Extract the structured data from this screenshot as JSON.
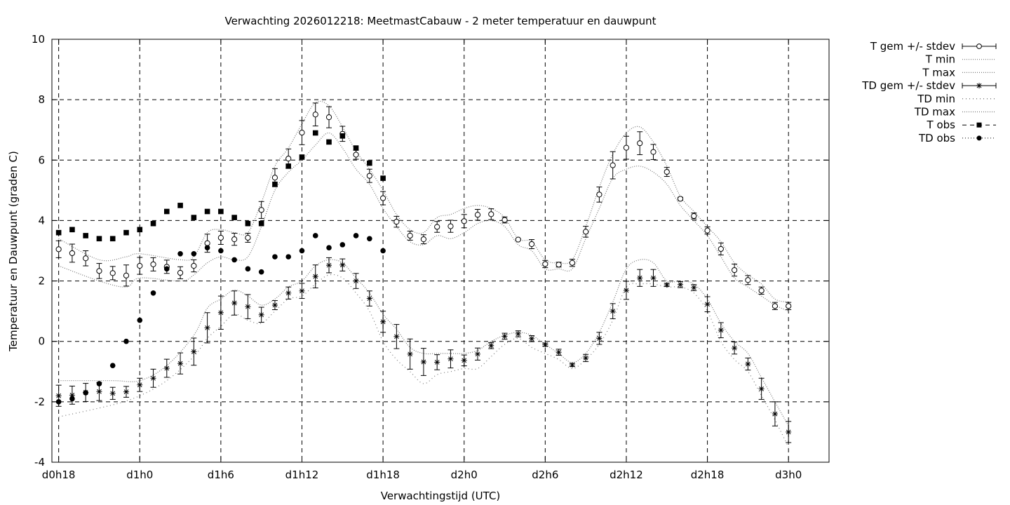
{
  "chart_data": {
    "type": "line",
    "title": "Verwachting 2026012218: MeetmastCabauw - 2 meter temperatuur en dauwpunt",
    "xlabel": "Verwachtingstijd (UTC)",
    "ylabel": "Temperatuur en Dauwpunt (graden C)",
    "x_unit": "hours since d0h18",
    "xlim": [
      -0.5,
      57
    ],
    "ylim": [
      -4,
      10
    ],
    "yticks": [
      -4,
      -2,
      0,
      2,
      4,
      6,
      8,
      10
    ],
    "ytick_labels": [
      "-4",
      "-2",
      "0",
      "2",
      "4",
      "6",
      "8",
      "10"
    ],
    "xticks": [
      0,
      6,
      12,
      18,
      24,
      30,
      36,
      42,
      48,
      54
    ],
    "xtick_labels": [
      "d0h18",
      "d1h0",
      "d1h6",
      "d1h12",
      "d1h18",
      "d2h0",
      "d2h6",
      "d2h12",
      "d2h18",
      "d3h0"
    ],
    "grid": true,
    "legend_position": "outside-top-right",
    "legend": [
      {
        "label": "T gem +/- stdev",
        "style": "errorbar-open-circle"
      },
      {
        "label": "T min",
        "style": "dotted"
      },
      {
        "label": "T max",
        "style": "dotted"
      },
      {
        "label": "TD gem +/- stdev",
        "style": "errorbar-star"
      },
      {
        "label": "TD min",
        "style": "dotted-sparse"
      },
      {
        "label": "TD max",
        "style": "dotted"
      },
      {
        "label": "T obs",
        "style": "dashed-filled-square"
      },
      {
        "label": "TD obs",
        "style": "dotted-filled-circle"
      }
    ],
    "series": [
      {
        "name": "T gem +/- stdev",
        "x": [
          0,
          1,
          2,
          3,
          4,
          5,
          6,
          7,
          8,
          9,
          10,
          11,
          12,
          13,
          14,
          15,
          16,
          17,
          18,
          19,
          20,
          21,
          22,
          23,
          24,
          25,
          26,
          27,
          28,
          29,
          30,
          31,
          32,
          33,
          34,
          35,
          36,
          37,
          38,
          39,
          40,
          41,
          42,
          43,
          44,
          45,
          46,
          47,
          48,
          49,
          50,
          51,
          52,
          53,
          54
        ],
        "y": [
          3.05,
          2.92,
          2.75,
          2.33,
          2.26,
          2.18,
          2.5,
          2.55,
          2.47,
          2.27,
          2.5,
          3.25,
          3.43,
          3.38,
          3.43,
          4.35,
          5.42,
          6.05,
          6.91,
          7.51,
          7.42,
          6.87,
          6.18,
          5.48,
          4.74,
          3.96,
          3.5,
          3.38,
          3.79,
          3.81,
          3.98,
          4.19,
          4.21,
          4.02,
          3.37,
          3.22,
          2.56,
          2.54,
          2.6,
          3.63,
          4.86,
          5.83,
          6.41,
          6.56,
          6.27,
          5.61,
          4.72,
          4.15,
          3.67,
          3.06,
          2.36,
          2.03,
          1.68,
          1.17,
          1.17
        ],
        "stdev": [
          0.28,
          0.3,
          0.25,
          0.25,
          0.22,
          0.35,
          0.28,
          0.22,
          0.22,
          0.2,
          0.2,
          0.3,
          0.22,
          0.2,
          0.15,
          0.28,
          0.3,
          0.32,
          0.4,
          0.38,
          0.35,
          0.25,
          0.15,
          0.22,
          0.22,
          0.18,
          0.15,
          0.15,
          0.18,
          0.2,
          0.22,
          0.18,
          0.18,
          0.1,
          0.02,
          0.15,
          0.12,
          0.08,
          0.12,
          0.18,
          0.25,
          0.45,
          0.38,
          0.38,
          0.25,
          0.15,
          0.05,
          0.1,
          0.12,
          0.2,
          0.2,
          0.15,
          0.12,
          0.12,
          0.12
        ]
      },
      {
        "name": "T min",
        "x": [
          0,
          3,
          5,
          6,
          9,
          10,
          11,
          12,
          13,
          14,
          15,
          16,
          17,
          18,
          19,
          20,
          21,
          22,
          23,
          24,
          25,
          26,
          27,
          28,
          29,
          30,
          31,
          32,
          33,
          34,
          35,
          36,
          37,
          38,
          39,
          40,
          41,
          42,
          43,
          44,
          45,
          46,
          47,
          48,
          49,
          50,
          51,
          52,
          53,
          54
        ],
        "y": [
          2.5,
          2.0,
          1.8,
          2.1,
          2.0,
          2.2,
          2.6,
          2.8,
          2.7,
          2.8,
          3.8,
          5.0,
          5.6,
          6.0,
          6.5,
          6.9,
          6.4,
          5.7,
          5.2,
          4.4,
          3.8,
          3.3,
          3.2,
          3.5,
          3.4,
          3.6,
          3.9,
          4.0,
          3.8,
          3.2,
          3.0,
          2.4,
          2.4,
          2.4,
          3.4,
          4.4,
          5.4,
          5.7,
          5.8,
          5.6,
          5.2,
          4.5,
          4.0,
          3.5,
          2.8,
          2.1,
          1.8,
          1.5,
          1.2,
          1.0
        ]
      },
      {
        "name": "T max",
        "x": [
          0,
          3,
          5,
          6,
          9,
          10,
          11,
          12,
          13,
          14,
          15,
          16,
          17,
          18,
          19,
          20,
          21,
          22,
          23,
          24,
          25,
          26,
          27,
          28,
          29,
          30,
          31,
          32,
          33,
          34,
          35,
          36,
          37,
          38,
          39,
          40,
          41,
          42,
          43,
          44,
          45,
          46,
          47,
          48,
          49,
          50,
          51,
          52,
          53,
          54
        ],
        "y": [
          3.4,
          2.7,
          2.8,
          2.9,
          2.7,
          2.8,
          3.6,
          3.7,
          3.6,
          3.6,
          4.6,
          5.8,
          6.4,
          7.2,
          7.9,
          7.8,
          7.1,
          6.3,
          5.7,
          5.0,
          4.2,
          3.7,
          3.6,
          4.1,
          4.2,
          4.4,
          4.5,
          4.4,
          4.1,
          3.4,
          3.3,
          2.7,
          2.6,
          2.7,
          3.8,
          5.1,
          6.2,
          6.9,
          7.1,
          6.6,
          5.8,
          4.8,
          4.3,
          3.8,
          3.3,
          2.6,
          2.2,
          1.9,
          1.4,
          1.3
        ]
      },
      {
        "name": "TD gem +/- stdev",
        "x": [
          0,
          1,
          2,
          3,
          4,
          5,
          6,
          7,
          8,
          9,
          10,
          11,
          12,
          13,
          14,
          15,
          16,
          17,
          18,
          19,
          20,
          21,
          22,
          23,
          24,
          25,
          26,
          27,
          28,
          29,
          30,
          31,
          32,
          33,
          34,
          35,
          36,
          37,
          38,
          39,
          40,
          41,
          42,
          43,
          44,
          45,
          46,
          47,
          48,
          49,
          50,
          51,
          52,
          53,
          54
        ],
        "y": [
          -1.8,
          -1.78,
          -1.69,
          -1.66,
          -1.72,
          -1.67,
          -1.44,
          -1.22,
          -0.89,
          -0.73,
          -0.34,
          0.45,
          0.95,
          1.27,
          1.15,
          0.88,
          1.2,
          1.6,
          1.67,
          2.15,
          2.52,
          2.53,
          2.0,
          1.42,
          0.65,
          0.16,
          -0.42,
          -0.68,
          -0.69,
          -0.58,
          -0.63,
          -0.42,
          -0.14,
          0.17,
          0.25,
          0.09,
          -0.11,
          -0.36,
          -0.78,
          -0.55,
          0.1,
          1.0,
          1.69,
          2.1,
          2.1,
          1.87,
          1.88,
          1.78,
          1.23,
          0.37,
          -0.22,
          -0.75,
          -1.57,
          -2.4,
          -3.0
        ],
        "stdev": [
          0.35,
          0.3,
          0.3,
          0.3,
          0.2,
          0.18,
          0.22,
          0.3,
          0.3,
          0.35,
          0.45,
          0.5,
          0.55,
          0.4,
          0.4,
          0.25,
          0.15,
          0.2,
          0.25,
          0.38,
          0.25,
          0.2,
          0.25,
          0.25,
          0.35,
          0.4,
          0.5,
          0.45,
          0.25,
          0.3,
          0.18,
          0.2,
          0.1,
          0.1,
          0.1,
          0.1,
          0.05,
          0.1,
          0.05,
          0.12,
          0.2,
          0.25,
          0.3,
          0.28,
          0.28,
          0.05,
          0.1,
          0.1,
          0.25,
          0.25,
          0.2,
          0.2,
          0.35,
          0.4,
          0.35
        ]
      },
      {
        "name": "TD min",
        "x": [
          0,
          4,
          6,
          8,
          10,
          11,
          12,
          13,
          14,
          15,
          16,
          17,
          18,
          19,
          20,
          21,
          22,
          23,
          24,
          25,
          26,
          27,
          28,
          29,
          30,
          31,
          32,
          33,
          34,
          35,
          36,
          37,
          38,
          39,
          40,
          41,
          42,
          43,
          44,
          45,
          46,
          47,
          48,
          49,
          50,
          51,
          52,
          53,
          54
        ],
        "y": [
          -2.5,
          -2.1,
          -1.8,
          -1.3,
          -0.5,
          0.1,
          0.5,
          0.9,
          0.7,
          0.6,
          1.0,
          1.4,
          1.5,
          1.9,
          2.2,
          2.1,
          1.6,
          1.0,
          0.0,
          -0.6,
          -1.0,
          -1.4,
          -1.1,
          -1.0,
          -0.9,
          -0.9,
          -0.5,
          -0.1,
          0.1,
          -0.2,
          -0.4,
          -0.6,
          -0.9,
          -0.6,
          -0.1,
          0.7,
          1.8,
          1.9,
          1.9,
          1.8,
          1.8,
          1.6,
          1.0,
          0.0,
          -0.6,
          -1.0,
          -1.8,
          -2.6,
          -3.5
        ]
      },
      {
        "name": "TD max",
        "x": [
          0,
          4,
          6,
          8,
          10,
          11,
          12,
          13,
          14,
          15,
          16,
          17,
          18,
          19,
          20,
          21,
          22,
          23,
          24,
          25,
          26,
          27,
          28,
          29,
          30,
          31,
          32,
          33,
          34,
          35,
          36,
          37,
          38,
          39,
          40,
          41,
          42,
          43,
          44,
          45,
          46,
          47,
          48,
          49,
          50,
          51,
          52,
          53,
          54
        ],
        "y": [
          -1.3,
          -1.3,
          -1.3,
          -0.8,
          0.2,
          1.1,
          1.4,
          1.7,
          1.5,
          1.2,
          1.4,
          1.8,
          2.0,
          2.5,
          2.7,
          2.6,
          2.1,
          1.6,
          0.9,
          0.4,
          -0.2,
          -0.4,
          -0.4,
          -0.4,
          -0.4,
          -0.3,
          0.0,
          0.2,
          0.3,
          0.2,
          -0.1,
          -0.4,
          -0.7,
          -0.4,
          0.3,
          1.3,
          2.4,
          2.7,
          2.6,
          2.0,
          2.0,
          1.9,
          1.4,
          0.6,
          0.0,
          -0.4,
          -1.2,
          -2.0,
          -2.8
        ]
      },
      {
        "name": "T obs",
        "x": [
          0,
          1,
          2,
          3,
          4,
          5,
          6,
          7,
          8,
          9,
          10,
          11,
          12,
          13,
          14,
          15,
          16,
          17,
          18,
          19,
          20,
          21,
          22,
          23
        ],
        "y": [
          3.6,
          3.7,
          3.5,
          3.4,
          3.4,
          3.6,
          3.7,
          3.9,
          4.3,
          4.5,
          4.1,
          4.3,
          4.3,
          4.1,
          3.9,
          3.9,
          5.2,
          5.8,
          6.1,
          6.9,
          6.6,
          6.8,
          6.4,
          5.9
        ]
      },
      {
        "name": "TD obs",
        "x": [
          0,
          1,
          2,
          3,
          4,
          5,
          6,
          7,
          8,
          9,
          10,
          11,
          12,
          13,
          14,
          15,
          16,
          17,
          18,
          19,
          20,
          21,
          22,
          23,
          24
        ],
        "y": [
          -2.0,
          -1.9,
          -1.7,
          -1.4,
          -0.8,
          0.0,
          0.7,
          1.6,
          2.4,
          2.9,
          2.9,
          3.1,
          3.0,
          2.7,
          2.4,
          2.3,
          2.8,
          2.8,
          3.0,
          3.5,
          3.1,
          3.2,
          3.5,
          3.4,
          3.0
        ]
      }
    ]
  },
  "extra_points": {
    "T obs": {
      "x": [
        24
      ],
      "y": [
        5.4
      ]
    }
  }
}
